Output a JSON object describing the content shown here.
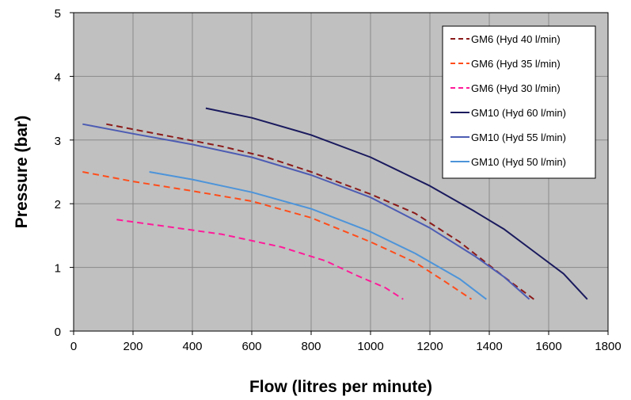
{
  "chart_data": {
    "type": "line",
    "title": "",
    "xlabel": "Flow (litres per minute)",
    "ylabel": "Pressure (bar)",
    "xlim": [
      0,
      1800
    ],
    "ylim": [
      0,
      5
    ],
    "x_ticks": [
      0,
      200,
      400,
      600,
      800,
      1000,
      1200,
      1400,
      1600,
      1800
    ],
    "y_ticks": [
      0,
      1,
      2,
      3,
      4,
      5
    ],
    "grid": true,
    "legend_position": "top-right",
    "plot_background": "#c0c0c0",
    "series": [
      {
        "name": "GM6 (Hyd 40 l/min)",
        "color": "#8b1a1a",
        "dash": "dashed",
        "points": [
          [
            110,
            3.25
          ],
          [
            300,
            3.08
          ],
          [
            500,
            2.9
          ],
          [
            650,
            2.73
          ],
          [
            800,
            2.5
          ],
          [
            1000,
            2.15
          ],
          [
            1150,
            1.85
          ],
          [
            1300,
            1.4
          ],
          [
            1450,
            0.85
          ],
          [
            1550,
            0.5
          ]
        ]
      },
      {
        "name": "GM6 (Hyd 35 l/min)",
        "color": "#ff4d1a",
        "dash": "dashed",
        "points": [
          [
            30,
            2.5
          ],
          [
            200,
            2.35
          ],
          [
            400,
            2.2
          ],
          [
            600,
            2.04
          ],
          [
            800,
            1.78
          ],
          [
            1000,
            1.4
          ],
          [
            1150,
            1.08
          ],
          [
            1250,
            0.78
          ],
          [
            1340,
            0.5
          ]
        ]
      },
      {
        "name": "GM6 (Hyd 30 l/min)",
        "color": "#ff1a99",
        "dash": "dashed",
        "points": [
          [
            145,
            1.75
          ],
          [
            300,
            1.65
          ],
          [
            500,
            1.52
          ],
          [
            700,
            1.32
          ],
          [
            850,
            1.1
          ],
          [
            950,
            0.88
          ],
          [
            1050,
            0.68
          ],
          [
            1110,
            0.5
          ]
        ]
      },
      {
        "name": "GM10 (Hyd 60 l/min)",
        "color": "#1a1a5e",
        "dash": "solid",
        "points": [
          [
            445,
            3.5
          ],
          [
            600,
            3.35
          ],
          [
            800,
            3.08
          ],
          [
            1000,
            2.73
          ],
          [
            1200,
            2.28
          ],
          [
            1350,
            1.88
          ],
          [
            1450,
            1.6
          ],
          [
            1550,
            1.25
          ],
          [
            1650,
            0.9
          ],
          [
            1730,
            0.5
          ]
        ]
      },
      {
        "name": "GM10 (Hyd 55 l/min)",
        "color": "#4d5cb3",
        "dash": "solid",
        "points": [
          [
            30,
            3.25
          ],
          [
            200,
            3.1
          ],
          [
            400,
            2.93
          ],
          [
            600,
            2.73
          ],
          [
            800,
            2.45
          ],
          [
            1000,
            2.1
          ],
          [
            1200,
            1.62
          ],
          [
            1350,
            1.18
          ],
          [
            1450,
            0.85
          ],
          [
            1535,
            0.5
          ]
        ]
      },
      {
        "name": "GM10 (Hyd 50 l/min)",
        "color": "#4d94d9",
        "dash": "solid",
        "points": [
          [
            255,
            2.5
          ],
          [
            400,
            2.38
          ],
          [
            600,
            2.18
          ],
          [
            800,
            1.92
          ],
          [
            1000,
            1.56
          ],
          [
            1150,
            1.22
          ],
          [
            1300,
            0.82
          ],
          [
            1390,
            0.5
          ]
        ]
      }
    ]
  }
}
